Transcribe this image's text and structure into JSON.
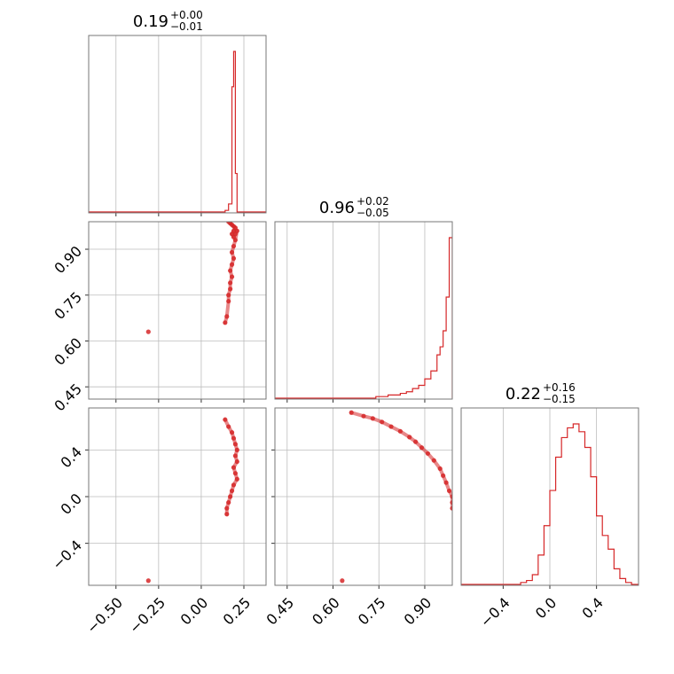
{
  "chart_data": {
    "type": "corner",
    "color": "#d62728",
    "grid": true,
    "panels": [
      {
        "id": "p0",
        "kind": "hist",
        "title": {
          "value": "0.19",
          "plus": "+0.00",
          "minus": "−0.01"
        },
        "xlim": [
          -0.66,
          0.38
        ],
        "xticks": [
          -0.5,
          -0.25,
          0.0,
          0.25
        ],
        "bins": {
          "edges": [
            -0.66,
            0.14,
            0.16,
            0.18,
            0.19,
            0.2,
            0.21,
            0.38
          ],
          "counts": [
            0,
            1,
            5,
            78,
            100,
            24,
            0
          ]
        }
      },
      {
        "id": "p1",
        "kind": "scatter",
        "xlim": [
          -0.66,
          0.38
        ],
        "ylim": [
          0.41,
          0.99
        ],
        "xticks": [
          -0.5,
          -0.25,
          0.0,
          0.25
        ],
        "yticks": [
          0.45,
          0.6,
          0.75,
          0.9
        ],
        "ytick_labels": [
          "0.45",
          "0.60",
          "0.75",
          "0.90"
        ],
        "points": [
          [
            0.16,
            0.99
          ],
          [
            0.17,
            0.985
          ],
          [
            0.18,
            0.98
          ],
          [
            0.19,
            0.975
          ],
          [
            0.2,
            0.97
          ],
          [
            0.19,
            0.96
          ],
          [
            0.18,
            0.95
          ],
          [
            0.19,
            0.94
          ],
          [
            0.2,
            0.95
          ],
          [
            0.21,
            0.96
          ],
          [
            0.2,
            0.93
          ],
          [
            0.19,
            0.91
          ],
          [
            0.18,
            0.89
          ],
          [
            0.19,
            0.87
          ],
          [
            0.18,
            0.85
          ],
          [
            0.17,
            0.83
          ],
          [
            0.18,
            0.81
          ],
          [
            0.17,
            0.79
          ],
          [
            0.17,
            0.77
          ],
          [
            0.16,
            0.75
          ],
          [
            0.16,
            0.73
          ],
          [
            0.15,
            0.68
          ],
          [
            0.14,
            0.66
          ],
          [
            -0.31,
            0.63
          ]
        ]
      },
      {
        "id": "p2",
        "kind": "hist",
        "title": {
          "value": "0.96",
          "plus": "+0.02",
          "minus": "−0.05"
        },
        "xlim": [
          0.41,
          0.99
        ],
        "xticks": [
          0.45,
          0.6,
          0.75,
          0.9
        ],
        "bins": {
          "edges": [
            0.41,
            0.74,
            0.76,
            0.78,
            0.8,
            0.82,
            0.84,
            0.86,
            0.88,
            0.9,
            0.92,
            0.94,
            0.95,
            0.96,
            0.97,
            0.98,
            0.99
          ],
          "counts": [
            0,
            1,
            1,
            2,
            2,
            3,
            4,
            6,
            8,
            12,
            17,
            27,
            32,
            42,
            63,
            100
          ]
        }
      },
      {
        "id": "p3",
        "kind": "scatter",
        "xlim": [
          -0.66,
          0.38
        ],
        "ylim": [
          -0.76,
          0.76
        ],
        "xticks": [
          -0.5,
          -0.25,
          0.0,
          0.25
        ],
        "xtick_labels": [
          "−0.50",
          "−0.25",
          "0.00",
          "0.25"
        ],
        "yticks": [
          -0.4,
          0.0,
          0.4
        ],
        "ytick_labels": [
          "−0.4",
          "0.0",
          "0.4"
        ],
        "points": [
          [
            0.14,
            0.66
          ],
          [
            0.16,
            0.6
          ],
          [
            0.18,
            0.55
          ],
          [
            0.19,
            0.5
          ],
          [
            0.2,
            0.45
          ],
          [
            0.21,
            0.4
          ],
          [
            0.2,
            0.35
          ],
          [
            0.21,
            0.3
          ],
          [
            0.19,
            0.25
          ],
          [
            0.2,
            0.2
          ],
          [
            0.21,
            0.15
          ],
          [
            0.19,
            0.1
          ],
          [
            0.18,
            0.05
          ],
          [
            0.17,
            0.0
          ],
          [
            0.16,
            -0.05
          ],
          [
            0.15,
            -0.1
          ],
          [
            0.15,
            -0.15
          ],
          [
            -0.31,
            -0.72
          ]
        ]
      },
      {
        "id": "p4",
        "kind": "scatter",
        "xlim": [
          0.41,
          0.99
        ],
        "ylim": [
          -0.76,
          0.76
        ],
        "xticks": [
          0.45,
          0.6,
          0.75,
          0.9
        ],
        "xtick_labels": [
          "0.45",
          "0.60",
          "0.75",
          "0.90"
        ],
        "yticks": [
          -0.4,
          0.0,
          0.4
        ],
        "points": [
          [
            0.66,
            0.72
          ],
          [
            0.7,
            0.69
          ],
          [
            0.73,
            0.67
          ],
          [
            0.76,
            0.64
          ],
          [
            0.79,
            0.6
          ],
          [
            0.82,
            0.56
          ],
          [
            0.85,
            0.51
          ],
          [
            0.87,
            0.47
          ],
          [
            0.89,
            0.42
          ],
          [
            0.91,
            0.37
          ],
          [
            0.93,
            0.31
          ],
          [
            0.95,
            0.24
          ],
          [
            0.96,
            0.18
          ],
          [
            0.97,
            0.12
          ],
          [
            0.98,
            0.05
          ],
          [
            0.99,
            0.0
          ],
          [
            0.99,
            -0.05
          ],
          [
            0.99,
            -0.1
          ],
          [
            0.63,
            -0.72
          ]
        ]
      },
      {
        "id": "p5",
        "kind": "hist",
        "title": {
          "value": "0.22",
          "plus": "+0.16",
          "minus": "−0.15"
        },
        "xlim": [
          -0.76,
          0.76
        ],
        "xticks": [
          -0.4,
          0.0,
          0.4
        ],
        "xtick_labels": [
          "−0.4",
          "0.0",
          "0.4"
        ],
        "bins": {
          "edges": [
            -0.76,
            -0.7,
            -0.65,
            -0.6,
            -0.55,
            -0.5,
            -0.45,
            -0.4,
            -0.35,
            -0.3,
            -0.25,
            -0.2,
            -0.15,
            -0.1,
            -0.05,
            0.0,
            0.05,
            0.1,
            0.15,
            0.2,
            0.25,
            0.3,
            0.35,
            0.4,
            0.45,
            0.5,
            0.55,
            0.6,
            0.65,
            0.7,
            0.76
          ],
          "counts": [
            0,
            0,
            0,
            0,
            0,
            0,
            0,
            0,
            0,
            0,
            1,
            2,
            5,
            15,
            30,
            48,
            65,
            75,
            80,
            82,
            78,
            70,
            55,
            35,
            25,
            18,
            8,
            3,
            1,
            0
          ]
        }
      }
    ]
  }
}
